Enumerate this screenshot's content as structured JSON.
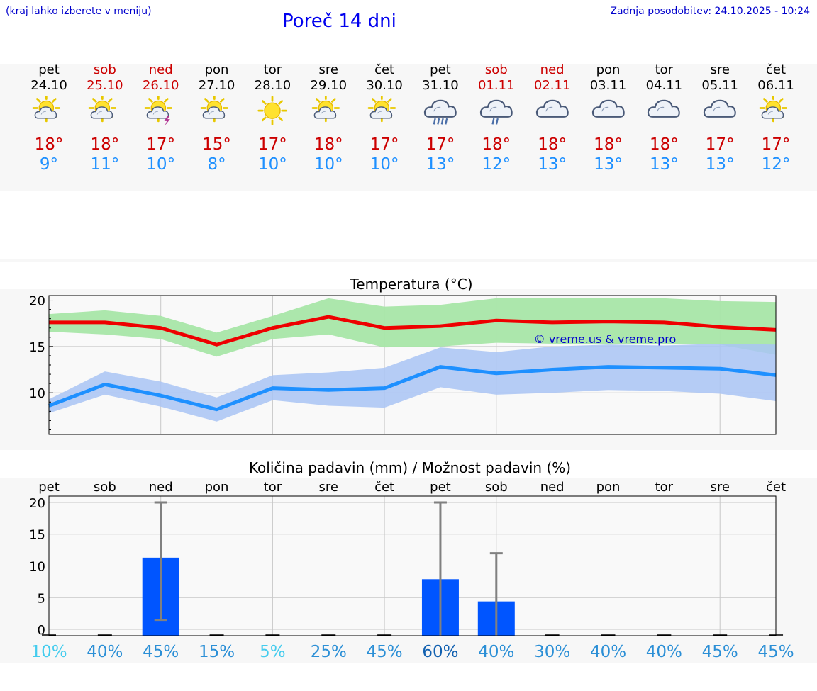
{
  "header": {
    "hint": "(kraj lahko izberete v meniju)",
    "title": "Poreč 14 dni",
    "updated": "Zadnja posodobitev: 24.10.2025 - 10:24"
  },
  "days": [
    {
      "name": "pet",
      "date": "24.10",
      "weekend": false,
      "icon": "sun-cloud-icon",
      "max": "18°",
      "min": "9°"
    },
    {
      "name": "sob",
      "date": "25.10",
      "weekend": true,
      "icon": "sun-cloud-icon",
      "max": "18°",
      "min": "11°"
    },
    {
      "name": "ned",
      "date": "26.10",
      "weekend": true,
      "icon": "sun-cloud-thunder-icon",
      "max": "17°",
      "min": "10°"
    },
    {
      "name": "pon",
      "date": "27.10",
      "weekend": false,
      "icon": "sun-cloud-icon",
      "max": "15°",
      "min": "8°"
    },
    {
      "name": "tor",
      "date": "28.10",
      "weekend": false,
      "icon": "sun-icon",
      "max": "17°",
      "min": "10°"
    },
    {
      "name": "sre",
      "date": "29.10",
      "weekend": false,
      "icon": "sun-cloud-icon",
      "max": "18°",
      "min": "10°"
    },
    {
      "name": "čet",
      "date": "30.10",
      "weekend": false,
      "icon": "sun-cloud-icon",
      "max": "17°",
      "min": "10°"
    },
    {
      "name": "pet",
      "date": "31.10",
      "weekend": false,
      "icon": "cloud-heavy-rain-icon",
      "max": "17°",
      "min": "13°"
    },
    {
      "name": "sob",
      "date": "01.11",
      "weekend": true,
      "icon": "cloud-rain-icon",
      "max": "18°",
      "min": "12°"
    },
    {
      "name": "ned",
      "date": "02.11",
      "weekend": true,
      "icon": "cloud-icon",
      "max": "18°",
      "min": "13°"
    },
    {
      "name": "pon",
      "date": "03.11",
      "weekend": false,
      "icon": "cloud-icon",
      "max": "18°",
      "min": "13°"
    },
    {
      "name": "tor",
      "date": "04.11",
      "weekend": false,
      "icon": "cloud-icon",
      "max": "18°",
      "min": "13°"
    },
    {
      "name": "sre",
      "date": "05.11",
      "weekend": false,
      "icon": "cloud-icon",
      "max": "17°",
      "min": "13°"
    },
    {
      "name": "čet",
      "date": "06.11",
      "weekend": false,
      "icon": "sun-cloud-icon",
      "max": "17°",
      "min": "12°"
    }
  ],
  "colors": {
    "max_line": "#ee0000",
    "max_band": "#a8e6a8",
    "min_line": "#1e90ff",
    "min_band": "#a9c4f5",
    "bar": "#0055ff",
    "error_bar": "#808080",
    "weekend": "#cc0000",
    "watermark": "#0000cc"
  },
  "chart_data": [
    {
      "type": "line",
      "title": "Temperatura (°C)",
      "watermark": "© vreme.us & vreme.pro",
      "ylim": [
        5.5,
        20.5
      ],
      "yticks": [
        10,
        15,
        20
      ],
      "x": [
        0,
        1,
        2,
        3,
        4,
        5,
        6,
        7,
        8,
        9,
        10,
        11,
        12,
        13
      ],
      "series": [
        {
          "name": "max",
          "values": [
            17.6,
            17.6,
            17.0,
            15.2,
            17.0,
            18.2,
            17.0,
            17.2,
            17.8,
            17.6,
            17.7,
            17.6,
            17.1,
            16.8
          ],
          "band_low": [
            16.6,
            16.3,
            15.8,
            13.9,
            15.8,
            16.3,
            14.9,
            15.0,
            15.4,
            15.3,
            15.2,
            15.3,
            15.2,
            14.1
          ],
          "band_high": [
            18.5,
            18.9,
            18.3,
            16.5,
            18.3,
            20.2,
            19.3,
            19.5,
            20.2,
            20.2,
            20.2,
            20.2,
            19.9,
            19.8
          ]
        },
        {
          "name": "min",
          "values": [
            8.6,
            10.9,
            9.7,
            8.2,
            10.5,
            10.3,
            10.5,
            12.8,
            12.1,
            12.5,
            12.8,
            12.7,
            12.6,
            11.9
          ],
          "band_low": [
            7.8,
            9.8,
            8.5,
            6.9,
            9.2,
            8.6,
            8.4,
            10.6,
            9.8,
            10.0,
            10.3,
            10.2,
            9.9,
            9.1
          ],
          "band_high": [
            9.3,
            12.3,
            11.2,
            9.5,
            11.9,
            12.2,
            12.7,
            14.9,
            14.4,
            15.0,
            15.2,
            15.1,
            15.3,
            15.2
          ]
        }
      ]
    },
    {
      "type": "bar",
      "title": "Količina padavin (mm) / Možnost padavin (%)",
      "ylim": [
        -1,
        21
      ],
      "yticks": [
        0,
        5,
        10,
        15,
        20
      ],
      "categories": [
        "pet",
        "sob",
        "ned",
        "pon",
        "tor",
        "sre",
        "čet",
        "pet",
        "sob",
        "ned",
        "pon",
        "tor",
        "sre",
        "čet"
      ],
      "values": [
        0,
        0,
        11.3,
        0,
        0,
        0,
        0,
        7.9,
        4.4,
        0,
        0,
        0,
        0,
        0
      ],
      "error_low": [
        0,
        0,
        1.5,
        0,
        0,
        0,
        0,
        0,
        0,
        0,
        0,
        0,
        0,
        0
      ],
      "error_high": [
        0,
        0,
        20,
        0,
        0,
        0,
        0,
        20,
        12,
        0,
        0,
        0,
        0,
        0
      ],
      "probability": [
        "10%",
        "40%",
        "45%",
        "15%",
        "5%",
        "25%",
        "45%",
        "60%",
        "40%",
        "30%",
        "40%",
        "40%",
        "45%",
        "45%"
      ],
      "probability_colors": [
        "#44ccee",
        "#2b8fd6",
        "#2b8fd6",
        "#2b8fd6",
        "#44ccee",
        "#2b8fd6",
        "#2b8fd6",
        "#1160b0",
        "#2b8fd6",
        "#2b8fd6",
        "#2b8fd6",
        "#2b8fd6",
        "#2b8fd6",
        "#2b8fd6"
      ]
    }
  ]
}
